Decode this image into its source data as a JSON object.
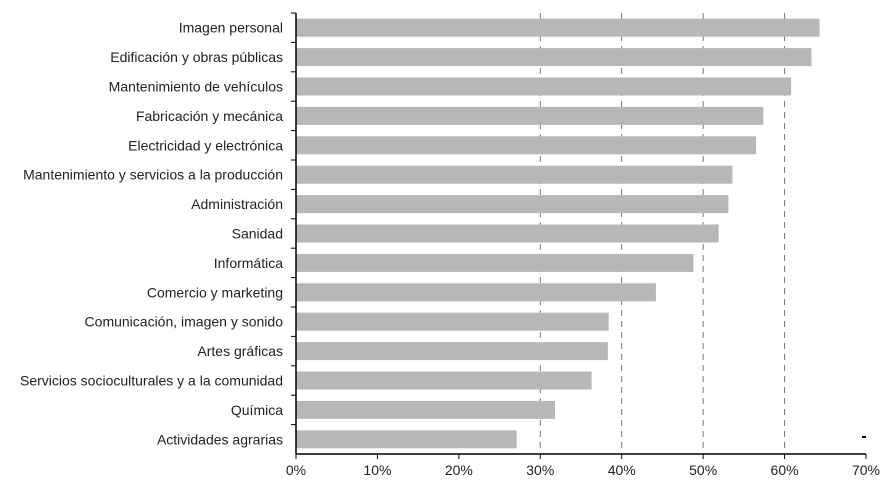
{
  "chart_data": {
    "type": "bar",
    "orientation": "horizontal",
    "categories": [
      "Imagen personal",
      "Edificación y obras públicas",
      "Mantenimiento de vehículos",
      "Fabricación y mecánica",
      "Electricidad y electrónica",
      "Mantenimiento y servicios a la producción",
      "Administración",
      "Sanidad",
      "Informática",
      "Comercio y marketing",
      "Comunicación, imagen y sonido",
      "Artes gráficas",
      "Servicios socioculturales y a la comunidad",
      "Química",
      "Actividades agrarias"
    ],
    "values": [
      64.3,
      63.3,
      60.8,
      57.4,
      56.5,
      53.6,
      53.1,
      51.9,
      48.8,
      44.2,
      38.4,
      38.3,
      36.3,
      31.8,
      27.1
    ],
    "xlim": [
      0,
      70
    ],
    "xticks": [
      "0%",
      "10%",
      "20%",
      "30%",
      "40%",
      "50%",
      "60%",
      "70%"
    ],
    "grid": "vertical dashed at 30%–60%",
    "bar_color": "#b7b7b9"
  }
}
